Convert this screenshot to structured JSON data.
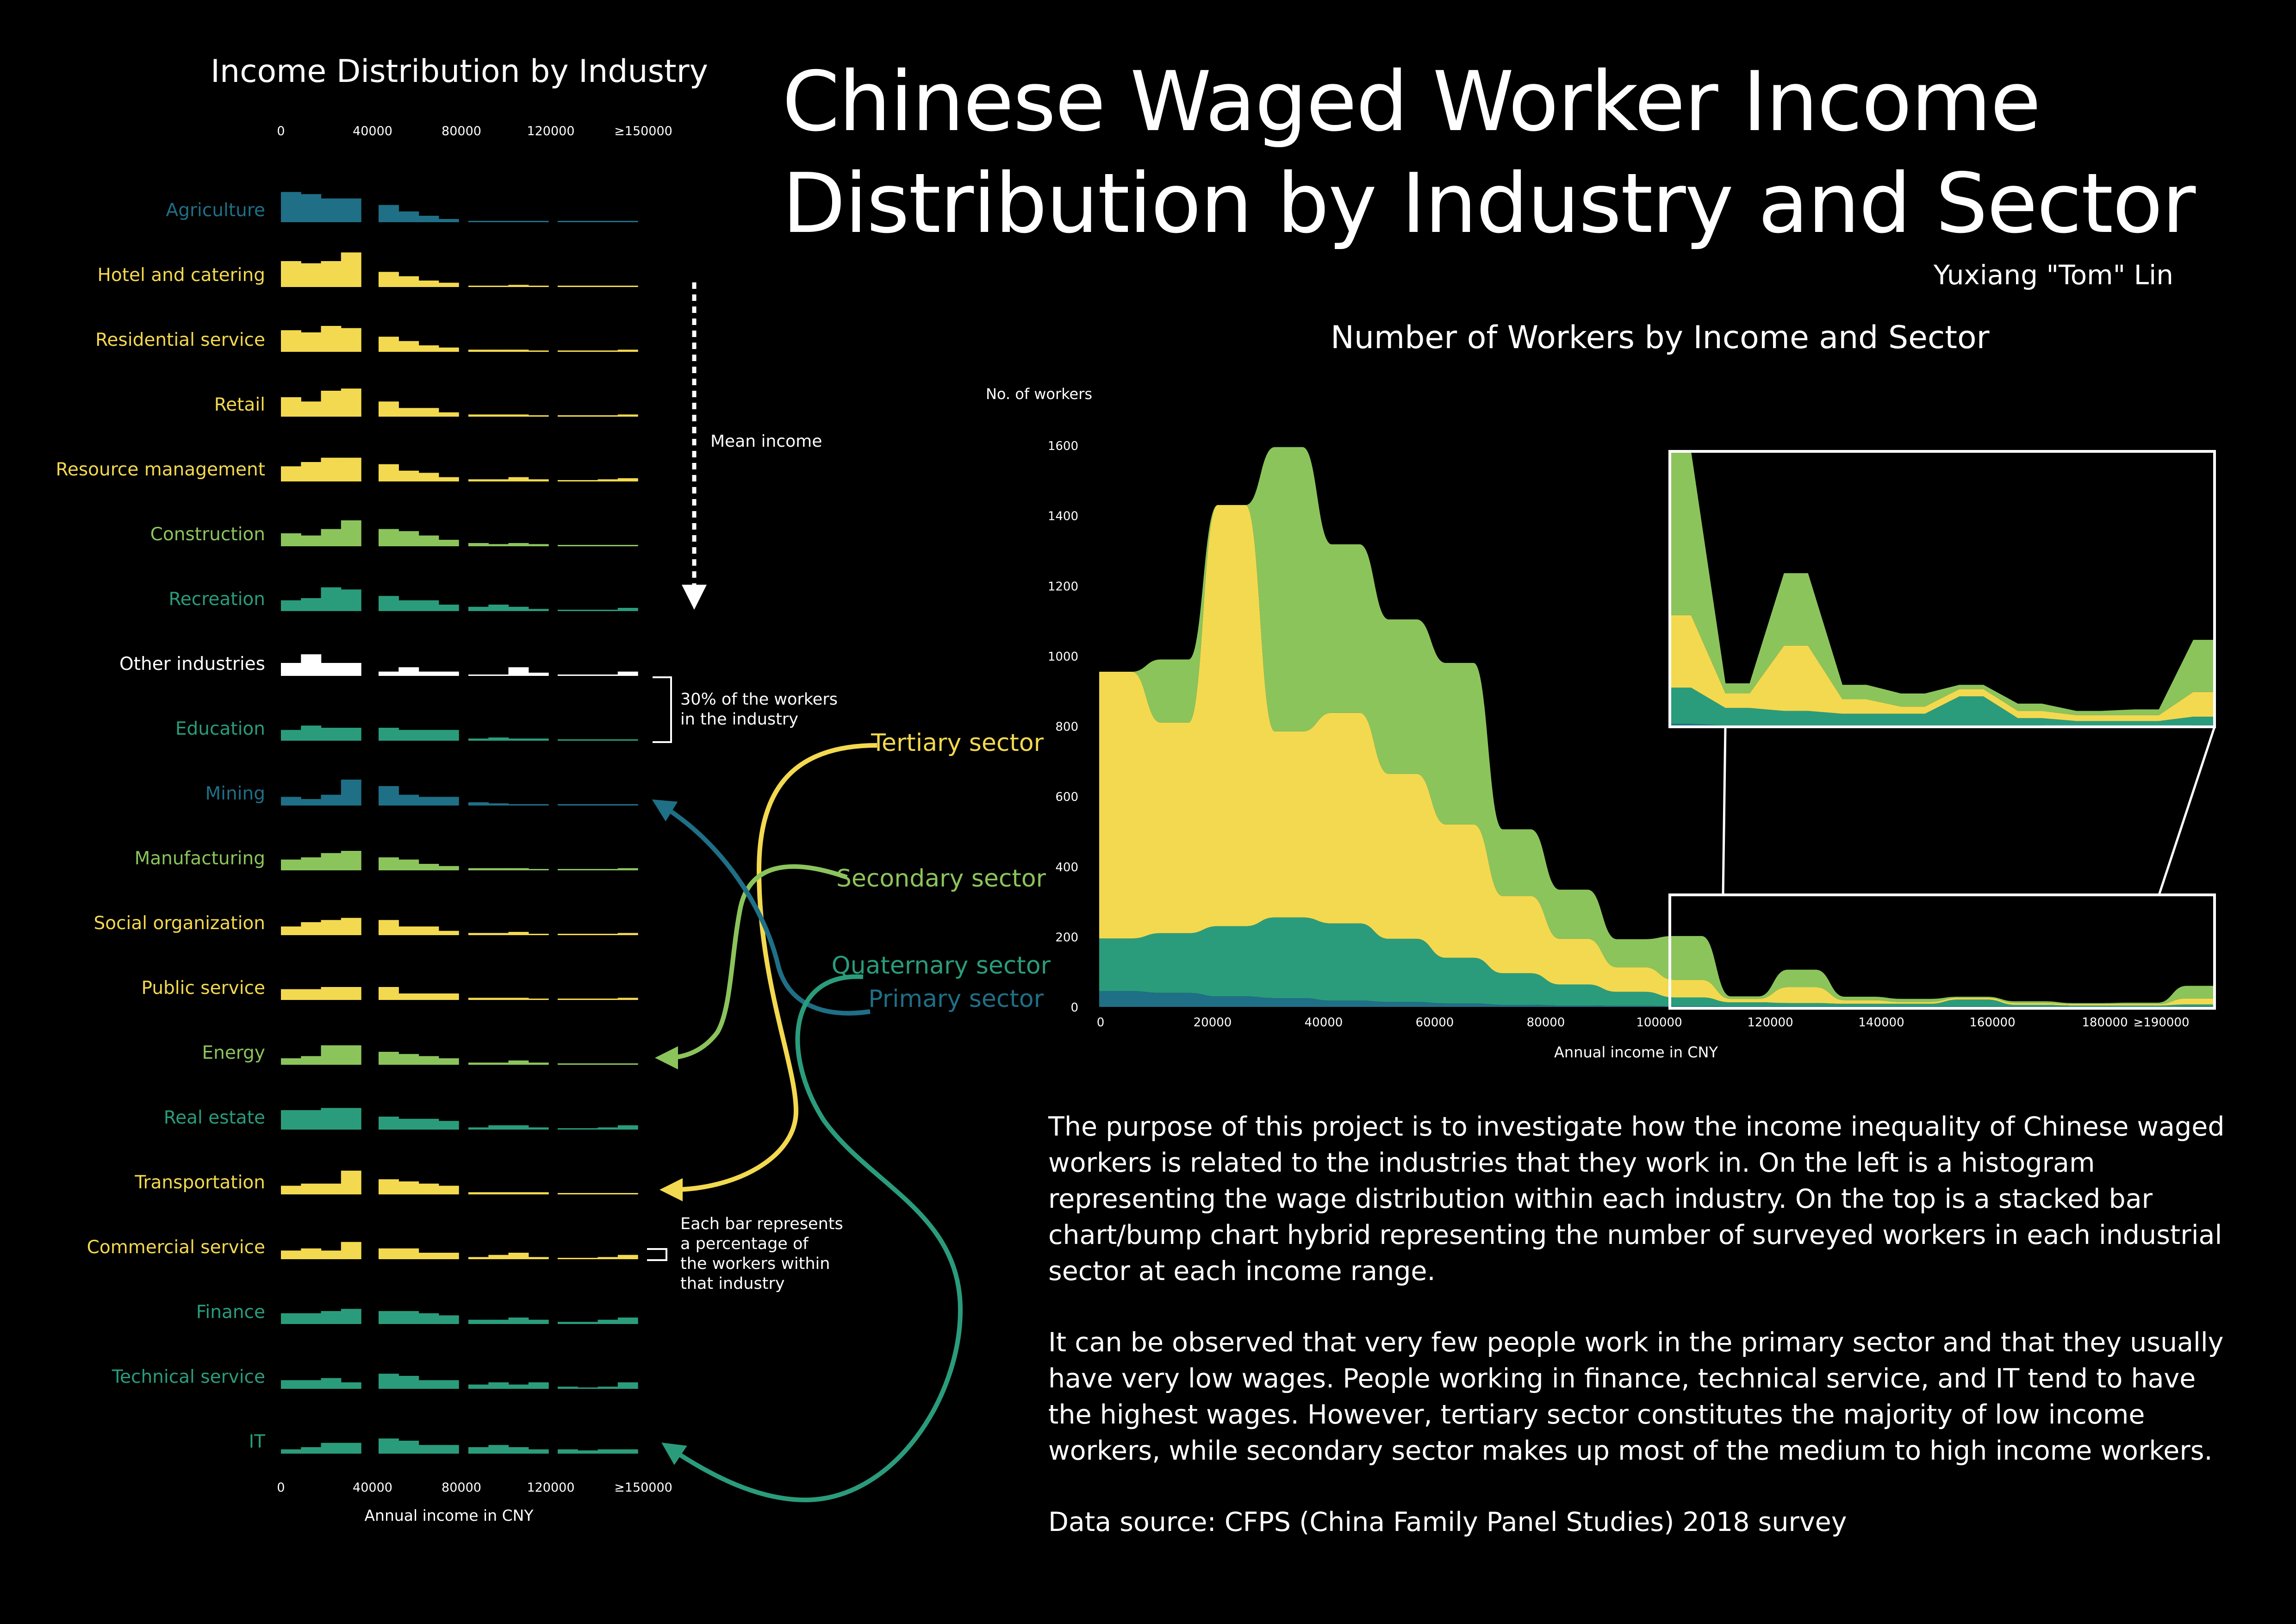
{
  "title_line1": "Chinese Waged Worker Income",
  "title_line2": "Distribution by Industry and Sector",
  "author": "Yuxiang \"Tom\" Lin",
  "colors": {
    "background": "#000000",
    "primary": "#1f6f86",
    "secondary": "#8cc45c",
    "tertiary": "#f3d94f",
    "quaternary": "#2a9c7c",
    "other": "#ffffff"
  },
  "annotations": {
    "mean_income": "Mean income",
    "thirty_pct_line1": "30% of the workers",
    "thirty_pct_line2": "in the industry",
    "each_bar_line1": "Each bar represents",
    "each_bar_line2": "a percentage of",
    "each_bar_line3": "the workers within",
    "each_bar_line4": "that industry"
  },
  "sector_labels": {
    "tertiary": "Tertiary sector",
    "secondary": "Secondary sector",
    "quaternary": "Quaternary sector",
    "primary": "Primary sector"
  },
  "description": {
    "p1": "The purpose of this project is to investigate how the income inequality of Chinese waged workers is related to the industries that they work in. On the left is a histogram representing the wage distribution within each industry. On the top is a stacked bar chart/bump chart hybrid representing the number of surveyed workers in each industrial sector at each income range.",
    "p2": "It can be observed that very few people work in the primary sector and that they usually have very low wages. People working in finance, technical service, and IT tend to have the highest wages. However, tertiary sector constitutes the majority of low income workers, while secondary sector makes up most of the medium to high income workers.",
    "p3": "Data source: CFPS (China Family Panel Studies) 2018 survey"
  },
  "chart_data": [
    {
      "type": "bar",
      "title": "Income Distribution by Industry",
      "xlabel": "Annual income in CNY",
      "x_ticks": [
        "0",
        "40000",
        "80000",
        "120000",
        "≥150000"
      ],
      "bins_per_group": 4,
      "groups": 4,
      "ymax_pct": 30,
      "series": [
        {
          "name": "Agriculture",
          "sector": "primary",
          "values": [
            14,
            13,
            11,
            11,
            8,
            5,
            3,
            1.5,
            0.5,
            0.5,
            0.4,
            0.3,
            0.2,
            0.3,
            0.2,
            0.3
          ]
        },
        {
          "name": "Hotel and catering",
          "sector": "tertiary",
          "values": [
            12,
            11,
            12,
            16,
            7,
            5,
            3,
            2,
            0.5,
            0.5,
            1,
            0.5,
            0.2,
            0.3,
            0.3,
            0.5
          ]
        },
        {
          "name": "Residential service",
          "sector": "tertiary",
          "values": [
            10,
            9,
            12,
            11,
            7,
            5,
            3,
            2,
            1,
            1,
            1,
            0.5,
            0.3,
            0.3,
            0.5,
            1
          ]
        },
        {
          "name": "Retail",
          "sector": "tertiary",
          "values": [
            9,
            7,
            12,
            13,
            7,
            4,
            4,
            2,
            1,
            1,
            1,
            0.5,
            0.5,
            0.5,
            0.5,
            1
          ]
        },
        {
          "name": "Resource management",
          "sector": "tertiary",
          "values": [
            7,
            9,
            11,
            11,
            8,
            5,
            4,
            2,
            1,
            1,
            2,
            1,
            0.5,
            0.3,
            1,
            1.5
          ]
        },
        {
          "name": "Construction",
          "sector": "secondary",
          "values": [
            6,
            5,
            8,
            12,
            8,
            7,
            5,
            3,
            1.5,
            1,
            1.5,
            1,
            0.5,
            0.3,
            0.5,
            0.5
          ]
        },
        {
          "name": "Recreation",
          "sector": "quaternary",
          "values": [
            5,
            6,
            11,
            10,
            7,
            5,
            5,
            3,
            2,
            3,
            2,
            1,
            0.3,
            0.3,
            0.5,
            1.5
          ]
        },
        {
          "name": "Other industries",
          "sector": "other",
          "values": [
            6,
            10,
            6,
            6,
            2,
            4,
            2,
            2,
            0.5,
            0.5,
            4,
            1.5,
            0.3,
            0.3,
            0.3,
            2
          ]
        },
        {
          "name": "Education",
          "sector": "quaternary",
          "values": [
            5,
            7,
            6,
            6,
            6,
            5,
            5,
            5,
            1,
            1.5,
            1,
            1,
            0.3,
            0.3,
            0.5,
            0.5
          ]
        },
        {
          "name": "Mining",
          "sector": "primary",
          "values": [
            4,
            3,
            5,
            12,
            9,
            5,
            4,
            4,
            1.5,
            1,
            0.5,
            0.5,
            0.3,
            0.3,
            0.2,
            0.2
          ]
        },
        {
          "name": "Manufacturing",
          "sector": "secondary",
          "values": [
            5,
            6,
            8,
            9,
            6,
            5,
            3,
            2,
            1,
            1,
            1,
            0.5,
            0.3,
            0.3,
            0.5,
            1
          ]
        },
        {
          "name": "Social organization",
          "sector": "tertiary",
          "values": [
            4,
            6,
            7,
            8,
            7,
            4,
            4,
            2,
            1,
            1,
            1.5,
            0.5,
            0.3,
            0.3,
            0.5,
            1
          ]
        },
        {
          "name": "Public service",
          "sector": "tertiary",
          "values": [
            5,
            5,
            6,
            6,
            6,
            3,
            3,
            3,
            1,
            1,
            1,
            0.5,
            0.5,
            0.3,
            0.5,
            1
          ]
        },
        {
          "name": "Energy",
          "sector": "secondary",
          "values": [
            3,
            4,
            9,
            9,
            6,
            5,
            4,
            3,
            1,
            1,
            2,
            1,
            0.3,
            0.3,
            0.5,
            0.5
          ]
        },
        {
          "name": "Real estate",
          "sector": "quaternary",
          "values": [
            9,
            9,
            10,
            10,
            6,
            5,
            5,
            4,
            1,
            2,
            2,
            1,
            0.5,
            0.5,
            1,
            2
          ]
        },
        {
          "name": "Transportation",
          "sector": "tertiary",
          "values": [
            4,
            5,
            5,
            11,
            7,
            6,
            5,
            4,
            1,
            1,
            1,
            1,
            0.3,
            0.3,
            0.5,
            0.5
          ]
        },
        {
          "name": "Commercial service",
          "sector": "tertiary",
          "values": [
            4,
            5,
            4,
            8,
            5,
            5,
            3,
            3,
            1,
            2,
            3,
            1,
            0.3,
            0.3,
            1,
            2
          ]
        },
        {
          "name": "Finance",
          "sector": "quaternary",
          "values": [
            5,
            5,
            6,
            7,
            6,
            6,
            5,
            4,
            2,
            2,
            3,
            2,
            1,
            1,
            2,
            3
          ]
        },
        {
          "name": "Technical service",
          "sector": "quaternary",
          "values": [
            4,
            4,
            5,
            3,
            7,
            6,
            4,
            4,
            2,
            3,
            2,
            3,
            1,
            0.5,
            1,
            3
          ]
        },
        {
          "name": "IT",
          "sector": "quaternary",
          "values": [
            2,
            3,
            5,
            5,
            7,
            6,
            4,
            4,
            3,
            4,
            3,
            2,
            2,
            1.5,
            2,
            2
          ]
        }
      ]
    },
    {
      "type": "area",
      "title": "Number of Workers by Income and Sector",
      "xlabel": "Annual income in CNY",
      "ylabel": "No. of workers",
      "ylim": [
        0,
        1600
      ],
      "y_ticks": [
        "0",
        "200",
        "400",
        "600",
        "800",
        "1000",
        "1200",
        "1400",
        "1600"
      ],
      "x_ticks": [
        "0",
        "20000",
        "40000",
        "60000",
        "80000",
        "100000",
        "120000",
        "140000",
        "160000",
        "180000",
        "≥190000"
      ],
      "x": [
        0,
        10000,
        20000,
        30000,
        40000,
        50000,
        60000,
        70000,
        80000,
        90000,
        100000,
        110000,
        120000,
        130000,
        140000,
        150000,
        160000,
        170000,
        180000,
        190000
      ],
      "series": [
        {
          "name": "Primary sector",
          "values": [
            45,
            40,
            30,
            25,
            18,
            14,
            10,
            6,
            4,
            3,
            2,
            1,
            1,
            1,
            1,
            1,
            1,
            0,
            0,
            1
          ]
        },
        {
          "name": "Quaternary sector",
          "values": [
            150,
            170,
            200,
            230,
            220,
            180,
            130,
            90,
            60,
            40,
            25,
            12,
            10,
            8,
            8,
            20,
            5,
            4,
            4,
            6
          ]
        },
        {
          "name": "Tertiary sector",
          "values": [
            760,
            600,
            1200,
            530,
            600,
            470,
            380,
            220,
            130,
            70,
            50,
            10,
            45,
            10,
            5,
            5,
            5,
            4,
            4,
            17
          ]
        },
        {
          "name": "Secondary sector",
          "values": [
            0,
            180,
            0,
            810,
            480,
            440,
            460,
            190,
            140,
            80,
            125,
            7,
            50,
            10,
            9,
            3,
            5,
            3,
            4,
            36
          ]
        }
      ]
    }
  ]
}
